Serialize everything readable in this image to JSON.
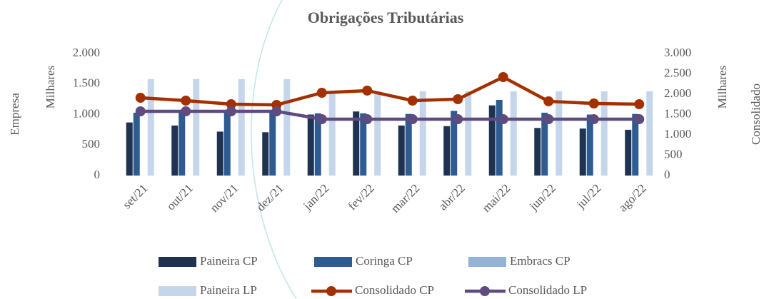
{
  "chart_data": {
    "type": "bar_line",
    "title": "Obrigações Tributárias",
    "ylabel": "Empresa",
    "y_unit": "Milhares",
    "y2label": "Consolidado",
    "y2_unit": "Milhares",
    "categories": [
      "set/21",
      "out/21",
      "nov/21",
      "dez/21",
      "jan/22",
      "fev/22",
      "mar/22",
      "abr/22",
      "mai/22",
      "jun/22",
      "jul/22",
      "ago/22"
    ],
    "series": [
      {
        "name": "Paineira CP",
        "type": "bar",
        "color": "#1f3350",
        "values": [
          870,
          820,
          720,
          710,
          1000,
          1050,
          820,
          810,
          1150,
          780,
          770,
          750
        ]
      },
      {
        "name": "Coringa CP",
        "type": "bar",
        "color": "#2e5b91",
        "values": [
          1030,
          1050,
          1050,
          1050,
          1020,
          1020,
          1010,
          1060,
          1240,
          1030,
          1000,
          1010
        ]
      },
      {
        "name": "Embracs CP",
        "type": "bar",
        "color": "#95b3d7",
        "values": [
          0,
          0,
          0,
          0,
          0,
          0,
          0,
          0,
          0,
          0,
          0,
          0
        ]
      },
      {
        "name": "Paineira LP",
        "type": "bar",
        "color": "#c5d6eb",
        "values": [
          1580,
          1580,
          1580,
          1580,
          1380,
          1380,
          1380,
          1380,
          1380,
          1380,
          1380,
          1380
        ]
      },
      {
        "name": "Consolidado CP",
        "type": "line",
        "axis": "y2",
        "color": "#a33000",
        "values": [
          1912,
          1842,
          1754,
          1737,
          2035,
          2088,
          1842,
          1877,
          2421,
          1825,
          1772,
          1754
        ]
      },
      {
        "name": "Consolidado LP",
        "type": "line",
        "axis": "y2",
        "color": "#5e4b80",
        "values": [
          1579,
          1579,
          1579,
          1579,
          1386,
          1386,
          1386,
          1386,
          1386,
          1386,
          1386,
          1386
        ]
      }
    ],
    "ylim": [
      0,
      2000
    ],
    "yticks": [
      0,
      500,
      {
        "value": 1000,
        "label": "1.000"
      },
      {
        "value": 1500,
        "label": "1.500"
      },
      {
        "value": 2000,
        "label": "2.000"
      }
    ],
    "y2lim": [
      0,
      3000
    ],
    "y2ticks": [
      0,
      500,
      {
        "value": 1000,
        "label": "1.000"
      },
      {
        "value": 1500,
        "label": "1.500"
      },
      {
        "value": 2000,
        "label": "2.000"
      },
      {
        "value": 2500,
        "label": "2.500"
      },
      {
        "value": 3000,
        "label": "3.000"
      }
    ],
    "grid": false,
    "legend": "bottom"
  }
}
